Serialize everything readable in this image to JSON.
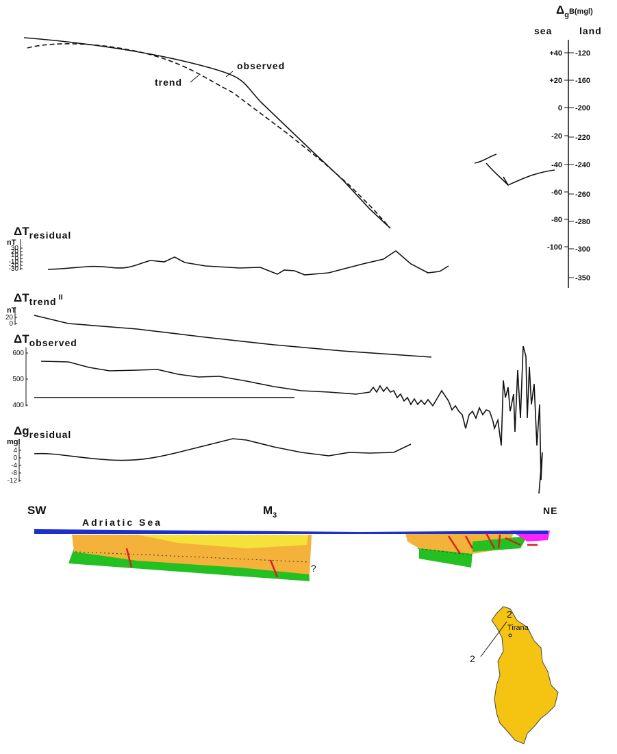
{
  "gravity_scale": {
    "delta": "Δ",
    "sub": "g",
    "label": "B(mgl)",
    "sea": "sea",
    "land": "land",
    "sea_ticks": [
      "+40",
      "+20",
      "0",
      "-20",
      "-40",
      "-60",
      "-80",
      "-100"
    ],
    "land_ticks": [
      "-120",
      "-160",
      "-200",
      "-220",
      "-240",
      "-260",
      "-280",
      "-300",
      "-350"
    ]
  },
  "curve_labels": {
    "observed": "observed",
    "trend": "trend"
  },
  "panels": [
    {
      "symbol": "ΔT",
      "sub": "residual",
      "unit": "nT",
      "ticks": [
        "30",
        "20",
        "10",
        "0",
        "-10",
        "-20",
        "-30"
      ]
    },
    {
      "symbol": "ΔT",
      "sub": "trend",
      "sup": "II",
      "unit": "nT",
      "ticks": [
        "20",
        "0"
      ]
    },
    {
      "symbol": "ΔT",
      "sub": "observed",
      "ticks": [
        "600",
        "500",
        "400"
      ]
    },
    {
      "symbol": "Δg",
      "sub": "residual",
      "unit": "mgl",
      "ticks": [
        "4",
        "0",
        "-4",
        "-8",
        "-12"
      ]
    }
  ],
  "section": {
    "left": "SW",
    "right": "NE",
    "profile": "M",
    "profile_sub": "3",
    "sea": "Adriatic Sea",
    "query": "?"
  },
  "map": {
    "label_start": "2",
    "label_end": "2",
    "city": "Tirana"
  }
}
